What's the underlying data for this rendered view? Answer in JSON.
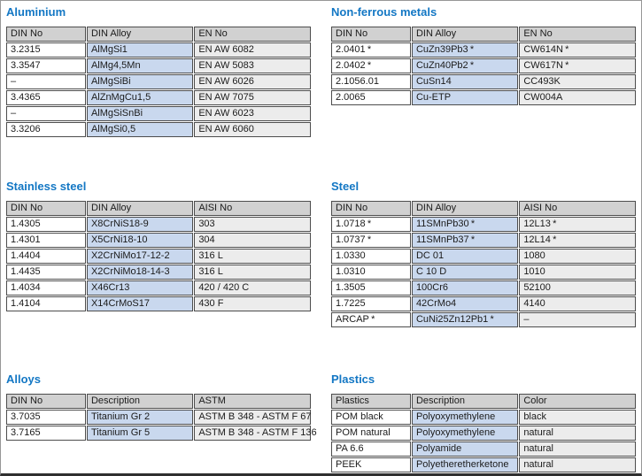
{
  "colors": {
    "title_blue": "#1377c4",
    "header_bg": "#d1d1d1",
    "col_din_bg": "#ffffff",
    "col_alloy_bg": "#c9d8ee",
    "col_norm_bg": "#ececec",
    "cell_border": "#4d4d4d",
    "page_border": "#979797",
    "page_bottom_bar": "#2f2f2f"
  },
  "sections": [
    {
      "id": "aluminium",
      "title": "Aluminium",
      "columns": [
        "DIN No",
        "DIN Alloy",
        "EN No"
      ],
      "rows": [
        [
          "3.2315",
          "AlMgSi1",
          "EN AW 6082"
        ],
        [
          "3.3547",
          "AlMg4,5Mn",
          "EN AW 5083"
        ],
        [
          "–",
          "AlMgSiBi",
          "EN AW 6026"
        ],
        [
          "3.4365",
          "AlZnMgCu1,5",
          "EN AW 7075"
        ],
        [
          "–",
          "AlMgSiSnBi",
          "EN AW 6023"
        ],
        [
          "3.3206",
          "AlMgSi0,5",
          "EN AW 6060"
        ]
      ]
    },
    {
      "id": "non-ferrous-metals",
      "title": "Non-ferrous metals",
      "columns": [
        "DIN No",
        "DIN Alloy",
        "EN No"
      ],
      "rows": [
        [
          "2.0401 *",
          "CuZn39Pb3 *",
          "CW614N *"
        ],
        [
          "2.0402 *",
          "CuZn40Pb2 *",
          "CW617N *"
        ],
        [
          "2.1056.01",
          "CuSn14",
          "CC493K"
        ],
        [
          "2.0065",
          "Cu-ETP",
          "CW004A"
        ]
      ]
    },
    {
      "id": "stainless-steel",
      "title": "Stainless steel",
      "columns": [
        "DIN No",
        "DIN Alloy",
        "AISI No"
      ],
      "rows": [
        [
          "1.4305",
          "X8CrNiS18-9",
          "303"
        ],
        [
          "1.4301",
          "X5CrNi18-10",
          "304"
        ],
        [
          "1.4404",
          "X2CrNiMo17-12-2",
          "316 L"
        ],
        [
          "1.4435",
          "X2CrNiMo18-14-3",
          "316 L"
        ],
        [
          "1.4034",
          "X46Cr13",
          "420 / 420 C"
        ],
        [
          "1.4104",
          "X14CrMoS17",
          "430 F"
        ]
      ]
    },
    {
      "id": "steel",
      "title": "Steel",
      "columns": [
        "DIN No",
        "DIN Alloy",
        "AISI No"
      ],
      "rows": [
        [
          "1.0718 *",
          "11SMnPb30 *",
          "12L13 *"
        ],
        [
          "1.0737 *",
          "11SMnPb37 *",
          "12L14 *"
        ],
        [
          "1.0330",
          "DC 01",
          "1080"
        ],
        [
          "1.0310",
          "C 10 D",
          "1010"
        ],
        [
          "1.3505",
          "100Cr6",
          "52100"
        ],
        [
          "1.7225",
          "42CrMo4",
          "4140"
        ],
        [
          "ARCAP *",
          "CuNi25Zn12Pb1 *",
          "–"
        ]
      ]
    },
    {
      "id": "alloys",
      "title": "Alloys",
      "columns": [
        "DIN No",
        "Description",
        "ASTM"
      ],
      "rows": [
        [
          "3.7035",
          "Titanium Gr 2",
          "ASTM B 348 - ASTM F 67"
        ],
        [
          "3.7165",
          "Titanium Gr 5",
          "ASTM B 348 - ASTM F 136"
        ]
      ]
    },
    {
      "id": "plastics",
      "title": "Plastics",
      "columns": [
        "Plastics",
        "Description",
        "Color"
      ],
      "rows": [
        [
          "POM black",
          "Polyoxymethylene",
          "black"
        ],
        [
          "POM natural",
          "Polyoxymethylene",
          "natural"
        ],
        [
          "PA 6.6",
          "Polyamide",
          "natural"
        ],
        [
          "PEEK",
          "Polyetheretherketone",
          "natural"
        ]
      ]
    }
  ]
}
